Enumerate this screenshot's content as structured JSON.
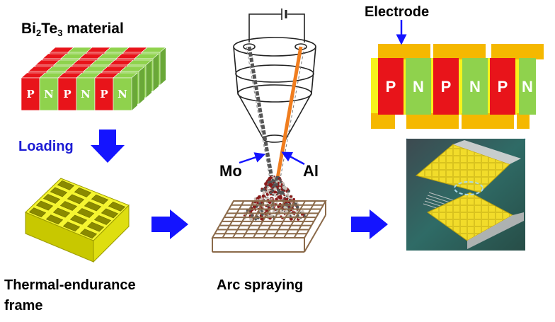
{
  "labels": {
    "material_prefix": "Bi",
    "material_sub1": "2",
    "material_mid": "Te",
    "material_sub2": "3",
    "material_suffix": " material",
    "loading": "Loading",
    "thermal": "Thermal-endurance",
    "frame": "frame",
    "arc": "Arc spraying",
    "electrode": "Electrode",
    "mo": "Mo",
    "al": "Al"
  },
  "pn_legs": [
    "P",
    "N",
    "P",
    "N",
    "P",
    "N"
  ],
  "colors": {
    "p_type": "#e8141a",
    "n_type": "#8fd24d",
    "electrode": "#f5b800",
    "frame": "#f0f020",
    "arrow": "#1414ff",
    "grid": "#8b6a4a",
    "wire_al": "#f07d1e",
    "connector": "#a8d8e8"
  }
}
